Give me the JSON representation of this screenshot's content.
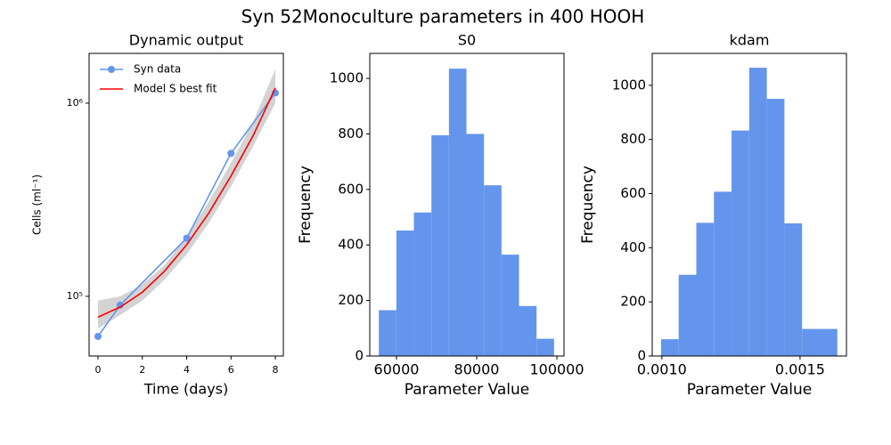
{
  "title": "Syn 52Monoculture parameters in 400 HOOH",
  "chart_data": [
    {
      "type": "line",
      "title": "Dynamic output",
      "xlabel": "Time (days)",
      "ylabel": "Cells (ml⁻¹)",
      "log_y": true,
      "legend": "upper left",
      "xlim": [
        -0.4,
        8.36
      ],
      "xticks": [
        0,
        2,
        4,
        6,
        8
      ],
      "ylim": [
        49100,
        1810000
      ],
      "yticks": [
        {
          "value": 100000,
          "label": "10⁵"
        },
        {
          "value": 1000000,
          "label": "10⁶"
        }
      ],
      "band": {
        "color": "#d3d3d3",
        "x": [
          0,
          1,
          2,
          3,
          4,
          5,
          6,
          7,
          8
        ],
        "lower": [
          68000,
          80000,
          95000,
          122000,
          165000,
          240000,
          370000,
          600000,
          1000000
        ],
        "upper": [
          95000,
          100000,
          115000,
          145000,
          205000,
          310000,
          490000,
          800000,
          1500000
        ]
      },
      "series": [
        {
          "name": "Syn data",
          "color": "#6495ed",
          "marker": true,
          "x": [
            0,
            1,
            4,
            6,
            8
          ],
          "values": [
            62000,
            90000,
            200000,
            550000,
            1130000
          ]
        },
        {
          "name": " Model S best fit",
          "color": "#ff0000",
          "marker": false,
          "x": [
            0,
            1,
            2,
            3,
            4,
            5,
            6,
            7,
            8
          ],
          "values": [
            78000,
            88000,
            105000,
            135000,
            185000,
            270000,
            420000,
            680000,
            1200000
          ]
        }
      ]
    },
    {
      "type": "histogram",
      "title": "S0",
      "xlabel": "Parameter Value",
      "ylabel": "Frequency",
      "color": "#6495ed",
      "bins": [
        55600,
        59970,
        64340,
        68710,
        73080,
        77450,
        81820,
        86190,
        90560,
        94930,
        99300
      ],
      "counts": [
        165,
        452,
        517,
        795,
        1035,
        800,
        615,
        365,
        180,
        62
      ],
      "xlim": [
        53333,
        101778
      ],
      "xticks": [
        60000,
        80000,
        100000
      ],
      "ylim": [
        0,
        1090
      ],
      "yticks": [
        0,
        200,
        400,
        600,
        800,
        1000
      ]
    },
    {
      "type": "histogram",
      "title": "kdam",
      "xlabel": "Parameter Value",
      "ylabel": "Frequency",
      "color": "#6495ed",
      "bins": [
        0.000997,
        0.0010608,
        0.0011246,
        0.0011884,
        0.0012522,
        0.001316,
        0.0013798,
        0.0014436,
        0.0015074,
        0.0015712,
        0.001635
      ],
      "counts": [
        62,
        300,
        492,
        607,
        833,
        1065,
        950,
        490,
        100,
        100
      ],
      "xlim": [
        0.000965,
        0.001668
      ],
      "xticks": [
        {
          "value": 0.001,
          "label": "0.0010"
        },
        {
          "value": 0.0015,
          "label": "0.0015"
        }
      ],
      "ylim": [
        0,
        1118
      ],
      "yticks": [
        0,
        200,
        400,
        600,
        800,
        1000
      ]
    }
  ]
}
